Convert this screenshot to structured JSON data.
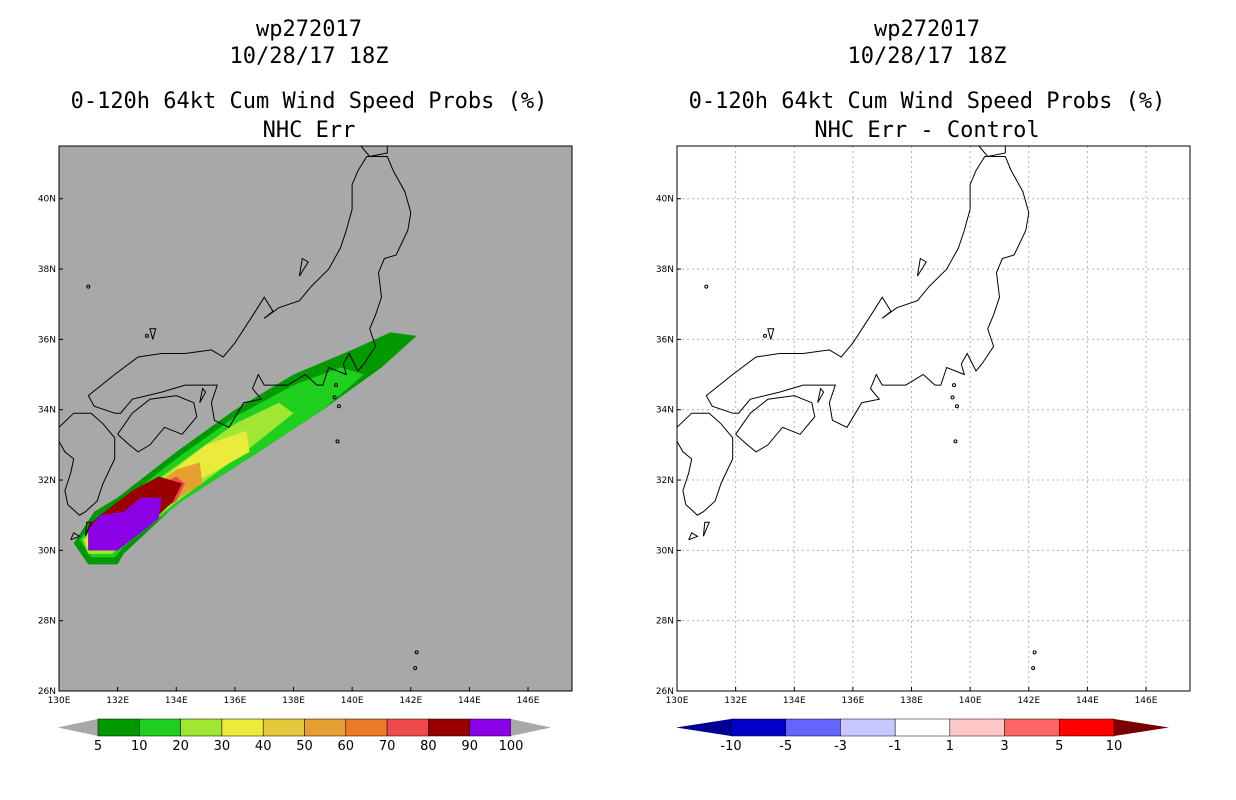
{
  "left": {
    "title_line1": "wp272017",
    "title_line2": "10/28/17 18Z",
    "title_line3": "0-120h 64kt Cum Wind Speed Probs (%)",
    "title_line4": "NHC Err",
    "background": "#a8a8a8"
  },
  "right": {
    "title_line1": "wp272017",
    "title_line2": "10/28/17 18Z",
    "title_line3": "0-120h 64kt Cum Wind Speed Probs (%)",
    "title_line4": "NHC Err - Control",
    "background": "#ffffff"
  },
  "map": {
    "lon_range": [
      130,
      147.5
    ],
    "lat_range": [
      26,
      41.5
    ],
    "lon_ticks": [
      "130E",
      "132E",
      "134E",
      "136E",
      "138E",
      "140E",
      "142E",
      "144E",
      "146E"
    ],
    "lat_ticks": [
      "26N",
      "28N",
      "30N",
      "32N",
      "34N",
      "36N",
      "38N",
      "40N"
    ],
    "gridlines_right": true
  },
  "left_colorbar": {
    "labels": [
      "5",
      "10",
      "20",
      "30",
      "40",
      "50",
      "60",
      "70",
      "80",
      "90",
      "100"
    ],
    "colors": [
      "#009a00",
      "#1ecf1e",
      "#a0e632",
      "#ebeb3c",
      "#e6c83c",
      "#e6a032",
      "#eb7b28",
      "#f04b4b",
      "#9a0000",
      "#8c00e6"
    ],
    "end_colors": [
      "#a8a8a8",
      "#a8a8a8"
    ]
  },
  "right_colorbar": {
    "labels": [
      "-10",
      "-5",
      "-3",
      "-1",
      "1",
      "3",
      "5",
      "10"
    ],
    "colors": [
      "#0000c8",
      "#6464ff",
      "#c8c8ff",
      "#ffffff",
      "#ffc8c8",
      "#ff6464",
      "#ff0000"
    ],
    "end_colors": [
      "#000096",
      "#780000"
    ]
  },
  "chart_data": {
    "type": "heatmap",
    "title": "0-120h 64kt Cum Wind Speed Probs (%)",
    "subtitle": "NHC Err",
    "bands": [
      {
        "min": 5,
        "polygon": [
          [
            131.0,
            29.6
          ],
          [
            130.5,
            30.2
          ],
          [
            131.2,
            31.1
          ],
          [
            132.0,
            31.5
          ],
          [
            134.0,
            32.8
          ],
          [
            136.0,
            34.0
          ],
          [
            138.0,
            35.0
          ],
          [
            140.0,
            35.7
          ],
          [
            141.3,
            36.2
          ],
          [
            142.2,
            36.1
          ],
          [
            141.0,
            35.2
          ],
          [
            139.0,
            34.0
          ],
          [
            137.0,
            32.9
          ],
          [
            134.0,
            31.3
          ],
          [
            132.2,
            29.9
          ],
          [
            132.0,
            29.6
          ]
        ]
      },
      {
        "min": 10,
        "polygon": [
          [
            131.1,
            29.8
          ],
          [
            130.7,
            30.3
          ],
          [
            131.3,
            30.9
          ],
          [
            132.0,
            31.3
          ],
          [
            134.0,
            32.6
          ],
          [
            136.0,
            33.8
          ],
          [
            138.0,
            34.7
          ],
          [
            139.6,
            35.2
          ],
          [
            140.4,
            35.0
          ],
          [
            139.0,
            34.0
          ],
          [
            137.0,
            32.9
          ],
          [
            134.2,
            31.4
          ],
          [
            132.2,
            30.1
          ],
          [
            131.9,
            29.8
          ]
        ]
      },
      {
        "min": 20,
        "polygon": [
          [
            131.0,
            29.9
          ],
          [
            130.8,
            30.3
          ],
          [
            131.3,
            30.8
          ],
          [
            132.0,
            31.2
          ],
          [
            134.0,
            32.4
          ],
          [
            136.0,
            33.6
          ],
          [
            137.5,
            34.2
          ],
          [
            138.0,
            33.9
          ],
          [
            136.5,
            32.9
          ],
          [
            134.2,
            31.5
          ],
          [
            132.1,
            30.1
          ],
          [
            131.8,
            29.9
          ]
        ]
      },
      {
        "min": 30,
        "polygon": [
          [
            131.0,
            30.0
          ],
          [
            130.9,
            30.3
          ],
          [
            131.3,
            30.7
          ],
          [
            132.0,
            31.1
          ],
          [
            133.5,
            32.0
          ],
          [
            135.0,
            33.0
          ],
          [
            136.4,
            33.4
          ],
          [
            136.5,
            32.8
          ],
          [
            135.0,
            32.1
          ],
          [
            133.5,
            31.3
          ],
          [
            132.1,
            30.2
          ],
          [
            131.8,
            30.0
          ]
        ]
      },
      {
        "min": 50,
        "polygon": [
          [
            131.0,
            30.0
          ],
          [
            131.0,
            30.5
          ],
          [
            131.4,
            30.8
          ],
          [
            132.4,
            31.3
          ],
          [
            134.0,
            32.3
          ],
          [
            134.8,
            32.5
          ],
          [
            134.9,
            31.9
          ],
          [
            133.7,
            31.3
          ],
          [
            132.2,
            30.2
          ],
          [
            131.8,
            30.0
          ]
        ]
      },
      {
        "min": 70,
        "polygon": [
          [
            131.0,
            30.0
          ],
          [
            131.0,
            30.6
          ],
          [
            131.5,
            30.9
          ],
          [
            132.5,
            31.5
          ],
          [
            134.0,
            32.1
          ],
          [
            134.3,
            31.9
          ],
          [
            134.0,
            31.4
          ],
          [
            133.2,
            31.0
          ],
          [
            132.1,
            30.2
          ],
          [
            131.8,
            30.0
          ]
        ]
      },
      {
        "min": 80,
        "polygon": [
          [
            131.0,
            30.0
          ],
          [
            131.0,
            30.7
          ],
          [
            131.4,
            31.0
          ],
          [
            132.5,
            31.7
          ],
          [
            133.4,
            32.1
          ],
          [
            134.2,
            31.9
          ],
          [
            133.9,
            31.4
          ],
          [
            132.9,
            30.6
          ],
          [
            132.0,
            30.0
          ]
        ]
      },
      {
        "min": 90,
        "polygon": [
          [
            131.0,
            30.0
          ],
          [
            131.0,
            30.6
          ],
          [
            131.4,
            31.0
          ],
          [
            132.2,
            31.1
          ],
          [
            132.8,
            31.5
          ],
          [
            133.5,
            31.5
          ],
          [
            133.4,
            30.9
          ],
          [
            132.8,
            30.5
          ],
          [
            132.0,
            30.0
          ]
        ]
      }
    ],
    "difference_field": "no values beyond the -1 to 1 band"
  }
}
